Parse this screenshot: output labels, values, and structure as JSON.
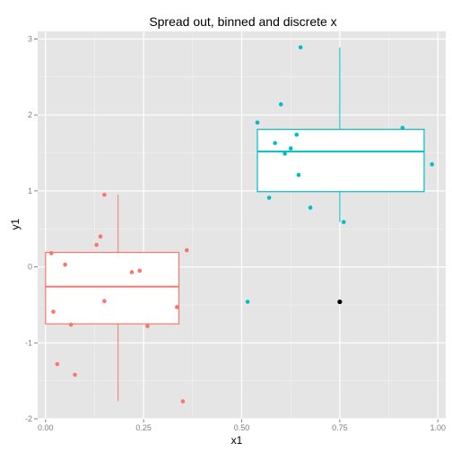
{
  "chart_data": {
    "type": "boxplot",
    "title": "Spread out, binned and discrete x",
    "xlabel": "x1",
    "ylabel": "y1",
    "xlim": [
      -0.02,
      1.02
    ],
    "ylim": [
      -2.0,
      3.1
    ],
    "x_ticks": [
      0.0,
      0.25,
      0.5,
      0.75,
      1.0
    ],
    "x_tick_labels": [
      "0.00",
      "0.25",
      "0.50",
      "0.75",
      "1.00"
    ],
    "y_ticks": [
      -2,
      -1,
      0,
      1,
      2,
      3
    ],
    "y_tick_labels": [
      "-2",
      "-1",
      "0",
      "1",
      "2",
      "3"
    ],
    "grid": true,
    "legend": "none",
    "colors": {
      "panel": "#e5e5e5",
      "grid_major": "#ffffff",
      "grid_minor": "#f2f2f2",
      "red": "#f8766d",
      "cyan": "#00bfc4",
      "outlier": "#000000"
    },
    "boxes": [
      {
        "group": "red",
        "x_left": 0.0,
        "x_right": 0.34,
        "center": 0.185,
        "q1": -0.75,
        "median": -0.26,
        "q3": 0.19,
        "whisker_low": -1.77,
        "whisker_high": 0.95
      },
      {
        "group": "cyan",
        "x_left": 0.54,
        "x_right": 0.965,
        "center": 0.75,
        "q1": 0.99,
        "median": 1.52,
        "q3": 1.81,
        "whisker_low": 0.59,
        "whisker_high": 2.89
      }
    ],
    "outliers": [
      {
        "x": 0.75,
        "y": -0.46
      }
    ],
    "series": [
      {
        "name": "red",
        "x": [
          0.015,
          0.02,
          0.03,
          0.05,
          0.065,
          0.075,
          0.13,
          0.14,
          0.15,
          0.15,
          0.22,
          0.24,
          0.26,
          0.335,
          0.35,
          0.36
        ],
        "y": [
          0.18,
          -0.59,
          -1.28,
          0.03,
          -0.76,
          -1.42,
          0.29,
          0.4,
          0.95,
          -0.45,
          -0.07,
          -0.05,
          -0.78,
          -0.53,
          -1.77,
          0.22
        ]
      },
      {
        "name": "cyan",
        "x": [
          0.515,
          0.54,
          0.57,
          0.585,
          0.6,
          0.61,
          0.625,
          0.64,
          0.645,
          0.65,
          0.675,
          0.76,
          0.91,
          0.985
        ],
        "y": [
          -0.46,
          1.9,
          0.91,
          1.63,
          2.14,
          1.49,
          1.56,
          1.74,
          1.21,
          2.89,
          0.78,
          0.59,
          1.83,
          1.35
        ]
      }
    ]
  }
}
